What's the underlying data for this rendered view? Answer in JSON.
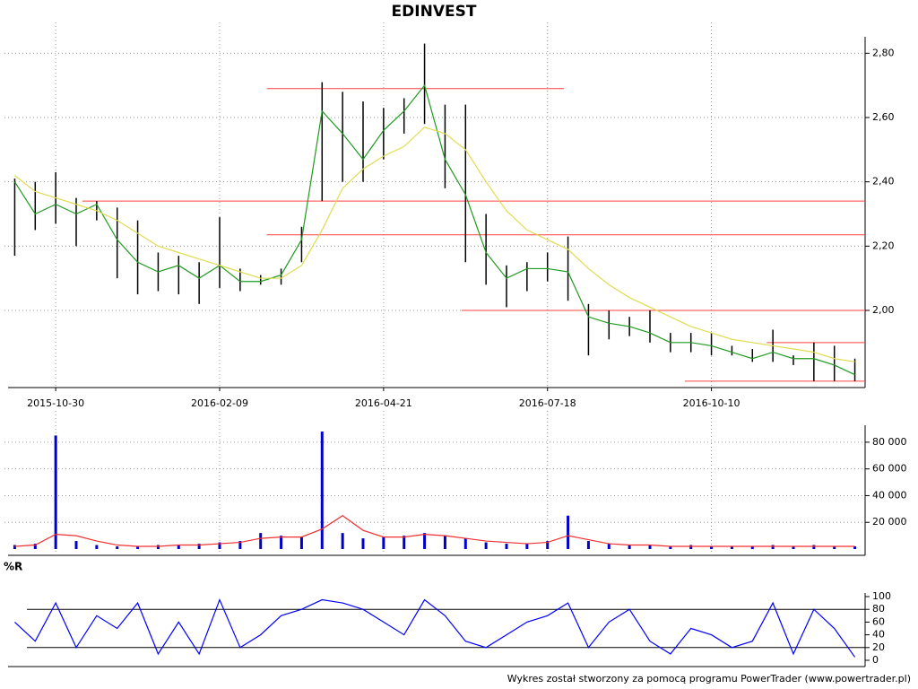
{
  "chart_data": [
    {
      "type": "hilo",
      "title": "EDINVEST",
      "categories": [
        null,
        null,
        "2015-10-30",
        null,
        null,
        null,
        null,
        null,
        null,
        null,
        "2016-02-09",
        null,
        null,
        null,
        null,
        null,
        null,
        null,
        "2016-04-21",
        null,
        null,
        null,
        null,
        null,
        null,
        null,
        "2016-07-18",
        null,
        null,
        null,
        null,
        null,
        null,
        null,
        "2016-10-10",
        null,
        null,
        null,
        null,
        null,
        null,
        null
      ],
      "high": [
        2.41,
        2.4,
        2.43,
        2.35,
        2.34,
        2.32,
        2.28,
        2.18,
        2.17,
        2.15,
        2.29,
        2.13,
        2.11,
        2.13,
        2.26,
        2.71,
        2.68,
        2.65,
        2.63,
        2.66,
        2.83,
        2.64,
        2.64,
        2.3,
        2.14,
        2.15,
        2.18,
        2.23,
        2.02,
        2.0,
        1.98,
        2.0,
        1.93,
        1.93,
        1.93,
        1.89,
        1.88,
        1.94,
        1.86,
        1.9,
        1.89,
        1.85
      ],
      "low": [
        2.17,
        2.25,
        2.27,
        2.2,
        2.28,
        2.1,
        2.05,
        2.06,
        2.05,
        2.02,
        2.07,
        2.06,
        2.08,
        2.08,
        2.15,
        2.34,
        2.4,
        2.4,
        2.47,
        2.55,
        2.58,
        2.38,
        2.15,
        2.08,
        2.01,
        2.06,
        2.09,
        2.03,
        1.86,
        1.91,
        1.92,
        1.9,
        1.87,
        1.87,
        1.86,
        1.86,
        1.84,
        1.84,
        1.83,
        1.78,
        1.78,
        1.78
      ],
      "bar_color": "#000000",
      "series": [
        {
          "color": "#1f9a1f",
          "values": [
            2.4,
            2.3,
            2.33,
            2.3,
            2.33,
            2.22,
            2.15,
            2.12,
            2.14,
            2.1,
            2.14,
            2.09,
            2.09,
            2.11,
            2.22,
            2.62,
            2.55,
            2.47,
            2.56,
            2.62,
            2.7,
            2.47,
            2.36,
            2.18,
            2.1,
            2.13,
            2.13,
            2.12,
            1.98,
            1.96,
            1.95,
            1.93,
            1.9,
            1.9,
            1.89,
            1.87,
            1.85,
            1.87,
            1.85,
            1.85,
            1.83,
            1.8
          ]
        },
        {
          "color": "#e0dc50",
          "values": [
            2.42,
            2.37,
            2.35,
            2.33,
            2.31,
            2.28,
            2.24,
            2.2,
            2.18,
            2.16,
            2.14,
            2.12,
            2.1,
            2.1,
            2.14,
            2.25,
            2.38,
            2.44,
            2.48,
            2.51,
            2.57,
            2.55,
            2.5,
            2.4,
            2.31,
            2.25,
            2.22,
            2.19,
            2.13,
            2.08,
            2.04,
            2.01,
            1.98,
            1.95,
            1.93,
            1.91,
            1.9,
            1.89,
            1.88,
            1.87,
            1.85,
            1.84
          ]
        }
      ],
      "levels": [
        {
          "value": 2.69,
          "x": [
            12.3,
            26.8
          ]
        },
        {
          "value": 2.34,
          "x": [
            3.3,
            41.5
          ]
        },
        {
          "value": 2.235,
          "x": [
            12.3,
            41.5
          ]
        },
        {
          "value": 2.0,
          "x": [
            21.8,
            41.5
          ]
        },
        {
          "value": 1.9,
          "x": [
            36.7,
            41.5
          ]
        },
        {
          "value": 1.78,
          "x": [
            32.7,
            41.5
          ]
        }
      ],
      "level_color": "#ff4040",
      "ylim": [
        1.76,
        2.84
      ],
      "yticks": [
        {
          "value": 2.0,
          "label": "2,00"
        },
        {
          "value": 2.2,
          "label": "2,20"
        },
        {
          "value": 2.4,
          "label": "2,40"
        },
        {
          "value": 2.6,
          "label": "2,60"
        },
        {
          "value": 2.8,
          "label": "2,80"
        }
      ],
      "grid": true
    },
    {
      "type": "bar",
      "values": [
        3000,
        4000,
        85000,
        6000,
        3000,
        2000,
        2000,
        3000,
        3000,
        4000,
        5000,
        6000,
        12000,
        10000,
        9000,
        88000,
        12000,
        8000,
        9000,
        10000,
        12000,
        10000,
        8000,
        5000,
        4000,
        4000,
        6000,
        25000,
        6000,
        4000,
        3000,
        3000,
        2000,
        3000,
        2000,
        2000,
        2000,
        3000,
        2000,
        3000,
        2000,
        2000
      ],
      "color": "#0000cc",
      "series": [
        {
          "color": "#f03030",
          "values": [
            2000,
            3000,
            11000,
            10000,
            6000,
            3000,
            2000,
            2000,
            3000,
            3000,
            4000,
            5000,
            8000,
            9000,
            9000,
            15000,
            25000,
            14000,
            9000,
            9000,
            11000,
            10000,
            8000,
            6000,
            5000,
            4000,
            5000,
            10000,
            7000,
            4000,
            3000,
            3000,
            2000,
            2000,
            2000,
            2000,
            2000,
            2000,
            2000,
            2000,
            2000,
            2000
          ]
        }
      ],
      "ylim": [
        0,
        90000
      ],
      "yticks": [
        {
          "value": 20000,
          "label": "20 000"
        },
        {
          "value": 40000,
          "label": "40 000"
        },
        {
          "value": 60000,
          "label": "60 000"
        },
        {
          "value": 80000,
          "label": "80 000"
        }
      ],
      "grid": true
    },
    {
      "type": "line",
      "title": "%R",
      "series": [
        {
          "color": "#0000ff",
          "values": [
            60,
            30,
            90,
            20,
            70,
            50,
            90,
            10,
            60,
            10,
            95,
            20,
            40,
            70,
            80,
            95,
            90,
            80,
            60,
            40,
            95,
            70,
            30,
            20,
            40,
            60,
            70,
            90,
            20,
            60,
            80,
            30,
            10,
            50,
            40,
            20,
            30,
            90,
            10,
            80,
            50,
            5
          ]
        }
      ],
      "levels": [
        {
          "value": 80
        },
        {
          "value": 20
        }
      ],
      "level_color": "#000000",
      "ylim": [
        0,
        100
      ],
      "yticks": [
        0,
        20,
        40,
        60,
        80,
        100
      ],
      "grid": false
    }
  ],
  "footer": "Wykres został stworzony za pomocą programu PowerTrader (www.powertrader.pl)"
}
